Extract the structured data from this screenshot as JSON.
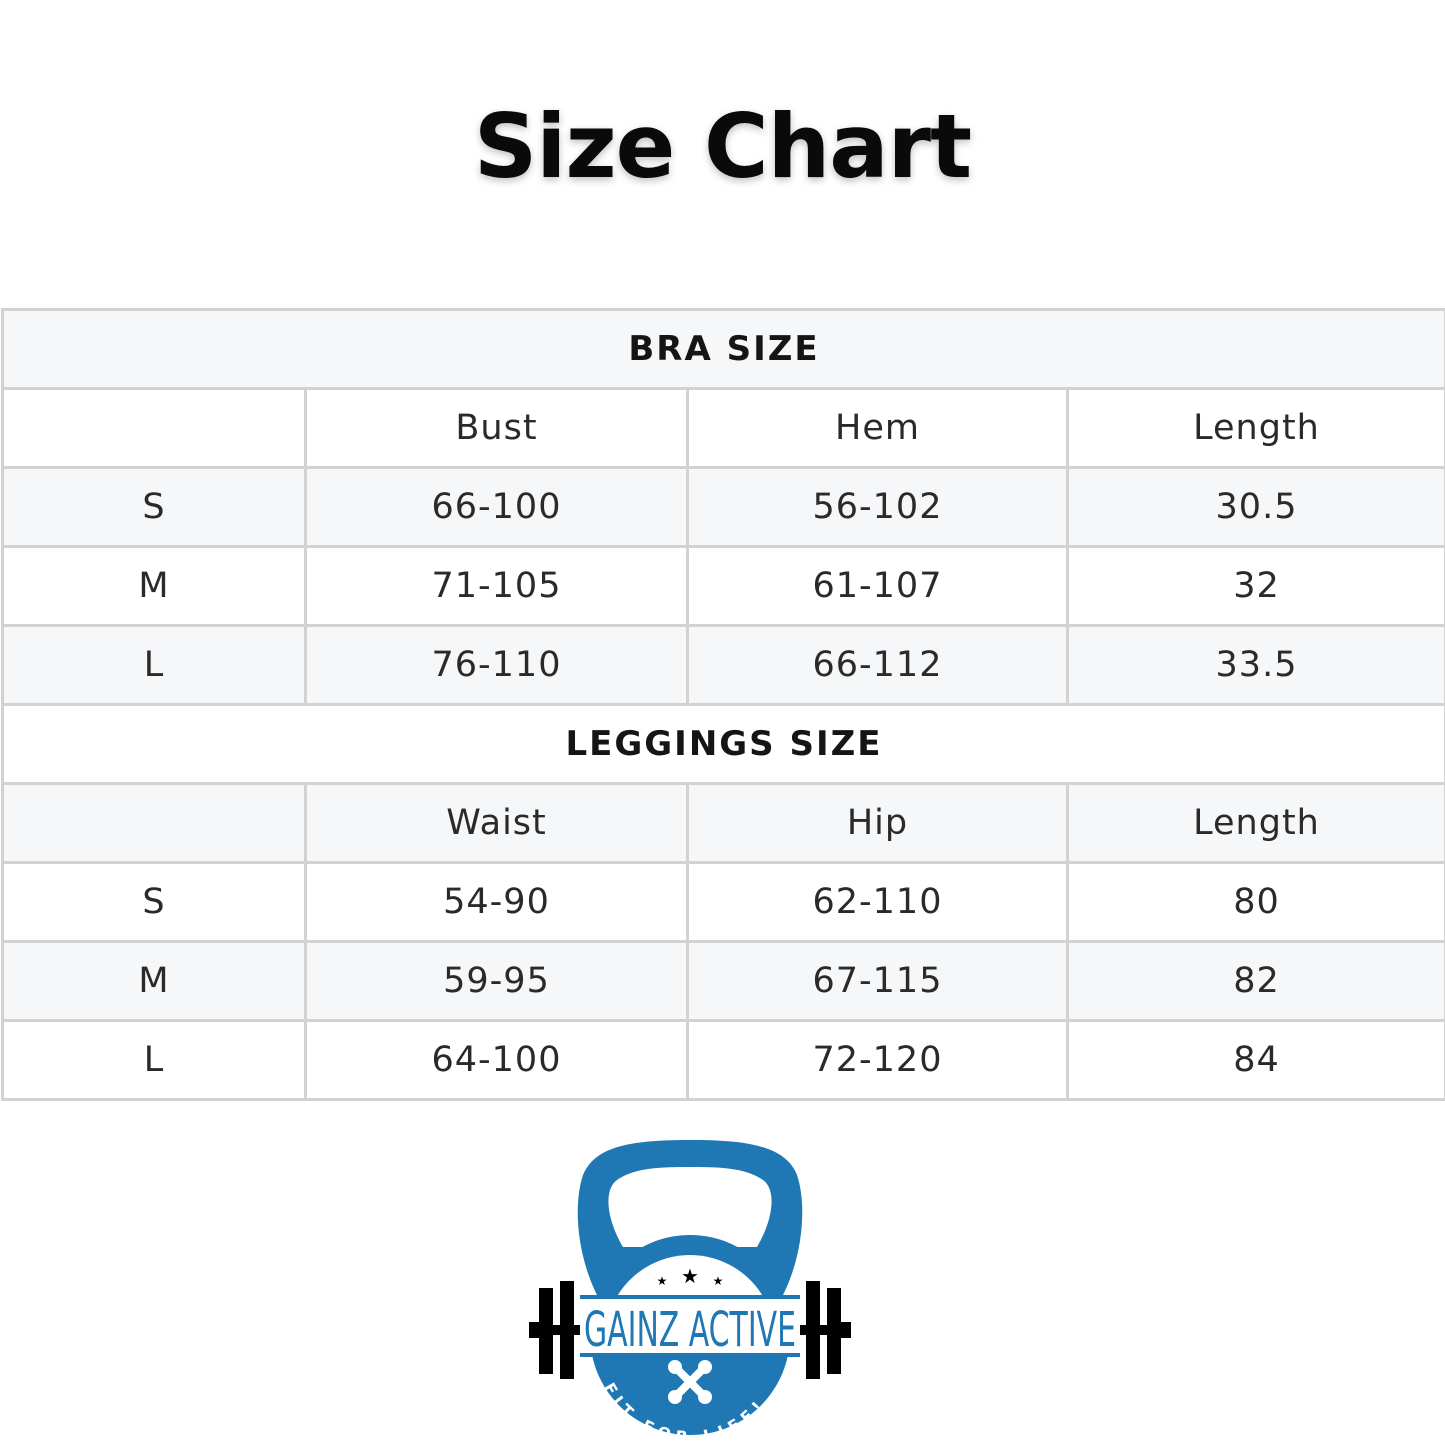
{
  "title": "Size Chart",
  "bra": {
    "heading": "BRA SIZE",
    "columns": [
      "",
      "Bust",
      "Hem",
      "Length"
    ],
    "rows": [
      [
        "S",
        "66-100",
        "56-102",
        "30.5"
      ],
      [
        "M",
        "71-105",
        "61-107",
        "32"
      ],
      [
        "L",
        "76-110",
        "66-112",
        "33.5"
      ]
    ]
  },
  "leggings": {
    "heading": "LEGGINGS SIZE",
    "columns": [
      "",
      "Waist",
      "Hip",
      "Length"
    ],
    "rows": [
      [
        "S",
        "54-90",
        "62-110",
        "80"
      ],
      [
        "M",
        "59-95",
        "67-115",
        "82"
      ],
      [
        "L",
        "64-100",
        "72-120",
        "84"
      ]
    ]
  },
  "logo": {
    "name": "GAINZ ACTIVE",
    "tagline": "FIT FOR LIFE!",
    "brand_color": "#1f78b4"
  }
}
